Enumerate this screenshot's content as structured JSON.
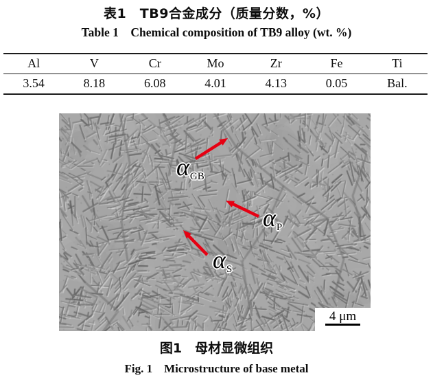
{
  "titles": {
    "table_zh": "表1 TB9合金成分（质量分数，%）",
    "table_en": "Table 1 Chemical composition of TB9 alloy (wt. %)"
  },
  "table": {
    "headers": [
      "Al",
      "V",
      "Cr",
      "Mo",
      "Zr",
      "Fe",
      "Ti"
    ],
    "values": [
      "3.54",
      "8.18",
      "6.08",
      "4.01",
      "4.13",
      "0.05",
      "Bal."
    ]
  },
  "chart_data": {
    "type": "table",
    "title": "Table 1 Chemical composition of TB9 alloy (wt. %)",
    "columns": [
      "Al",
      "V",
      "Cr",
      "Mo",
      "Zr",
      "Fe",
      "Ti"
    ],
    "rows": [
      [
        "3.54",
        "8.18",
        "6.08",
        "4.01",
        "4.13",
        "0.05",
        "Bal."
      ]
    ]
  },
  "figure": {
    "annotations": [
      {
        "symbol": "α",
        "sub": "GB"
      },
      {
        "symbol": "α",
        "sub": "P"
      },
      {
        "symbol": "α",
        "sub": "S"
      }
    ],
    "arrow_color": "#e60012",
    "scale_bar_label": "4 μm",
    "caption_zh": "图1 母材显微组织",
    "caption_en": "Fig. 1 Microstructure of base metal"
  }
}
